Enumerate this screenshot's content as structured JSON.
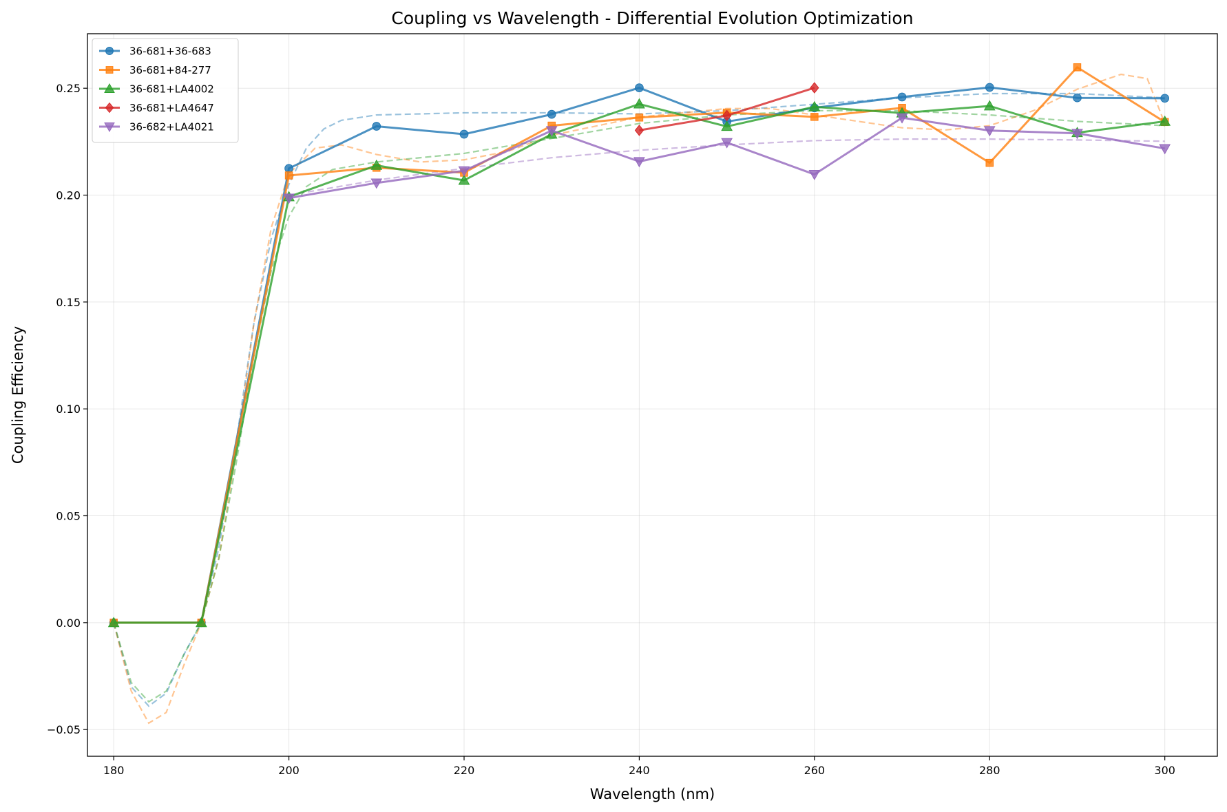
{
  "chart_data": {
    "type": "line",
    "title": "Coupling vs Wavelength - Differential Evolution Optimization",
    "xlabel": "Wavelength (nm)",
    "ylabel": "Coupling Efficiency",
    "xlim": [
      177,
      306
    ],
    "ylim": [
      -0.0625,
      0.2755
    ],
    "xticks": [
      180,
      200,
      220,
      240,
      260,
      280,
      300
    ],
    "xtick_labels": [
      "180",
      "200",
      "220",
      "240",
      "260",
      "280",
      "300"
    ],
    "yticks": [
      -0.05,
      0.0,
      0.05,
      0.1,
      0.15,
      0.2,
      0.25
    ],
    "ytick_labels": [
      "−0.05",
      "0.00",
      "0.05",
      "0.10",
      "0.15",
      "0.20",
      "0.25"
    ],
    "grid": true,
    "legend_position": "top-left",
    "series": [
      {
        "name": "36-681+36-683",
        "color": "#1f77b4",
        "marker": "circle",
        "points": [
          [
            180,
            0.0
          ],
          [
            190,
            0.0
          ],
          [
            200,
            0.2125
          ],
          [
            210,
            0.2322
          ],
          [
            220,
            0.2285
          ],
          [
            230,
            0.2378
          ],
          [
            240,
            0.2502
          ],
          [
            250,
            0.2344
          ],
          [
            260,
            0.2408
          ],
          [
            270,
            0.2459
          ],
          [
            280,
            0.2504
          ],
          [
            290,
            0.2455
          ],
          [
            300,
            0.2453
          ]
        ],
        "fit": [
          [
            180,
            0.0
          ],
          [
            182,
            -0.03
          ],
          [
            184,
            -0.039
          ],
          [
            186,
            -0.033
          ],
          [
            188,
            -0.015
          ],
          [
            190,
            0.0
          ],
          [
            192,
            0.035
          ],
          [
            194,
            0.085
          ],
          [
            196,
            0.14
          ],
          [
            198,
            0.18
          ],
          [
            200,
            0.205
          ],
          [
            202,
            0.222
          ],
          [
            204,
            0.231
          ],
          [
            206,
            0.235
          ],
          [
            210,
            0.2375
          ],
          [
            220,
            0.2385
          ],
          [
            230,
            0.2385
          ],
          [
            240,
            0.238
          ],
          [
            250,
            0.2395
          ],
          [
            260,
            0.2425
          ],
          [
            270,
            0.2455
          ],
          [
            280,
            0.2475
          ],
          [
            290,
            0.2475
          ],
          [
            300,
            0.2455
          ]
        ]
      },
      {
        "name": "36-681+84-277",
        "color": "#ff7f0e",
        "marker": "square",
        "points": [
          [
            180,
            0.0
          ],
          [
            190,
            0.0
          ],
          [
            200,
            0.2092
          ],
          [
            210,
            0.2128
          ],
          [
            220,
            0.2105
          ],
          [
            230,
            0.2325
          ],
          [
            240,
            0.2363
          ],
          [
            250,
            0.2386
          ],
          [
            260,
            0.2366
          ],
          [
            270,
            0.2408
          ],
          [
            280,
            0.2151
          ],
          [
            290,
            0.2598
          ],
          [
            300,
            0.2342
          ]
        ],
        "fit": [
          [
            180,
            0.0
          ],
          [
            182,
            -0.032
          ],
          [
            184,
            -0.047
          ],
          [
            186,
            -0.042
          ],
          [
            188,
            -0.02
          ],
          [
            190,
            0.0
          ],
          [
            192,
            0.03
          ],
          [
            194,
            0.08
          ],
          [
            196,
            0.14
          ],
          [
            198,
            0.185
          ],
          [
            200,
            0.21
          ],
          [
            203,
            0.222
          ],
          [
            206,
            0.2235
          ],
          [
            210,
            0.219
          ],
          [
            215,
            0.2155
          ],
          [
            220,
            0.2165
          ],
          [
            225,
            0.2205
          ],
          [
            230,
            0.228
          ],
          [
            240,
            0.2365
          ],
          [
            250,
            0.2405
          ],
          [
            255,
            0.2405
          ],
          [
            260,
            0.2375
          ],
          [
            270,
            0.2315
          ],
          [
            275,
            0.2305
          ],
          [
            280,
            0.2325
          ],
          [
            285,
            0.2395
          ],
          [
            290,
            0.2495
          ],
          [
            295,
            0.2565
          ],
          [
            298,
            0.2545
          ],
          [
            300,
            0.2335
          ]
        ]
      },
      {
        "name": "36-681+LA4002",
        "color": "#2ca02c",
        "marker": "triangle-up",
        "points": [
          [
            180,
            0.0
          ],
          [
            190,
            0.0
          ],
          [
            200,
            0.1992
          ],
          [
            210,
            0.2139
          ],
          [
            220,
            0.2069
          ],
          [
            230,
            0.2285
          ],
          [
            240,
            0.2426
          ],
          [
            250,
            0.2321
          ],
          [
            260,
            0.2413
          ],
          [
            270,
            0.2384
          ],
          [
            280,
            0.2417
          ],
          [
            290,
            0.2292
          ],
          [
            300,
            0.2345
          ]
        ],
        "fit": [
          [
            180,
            0.0
          ],
          [
            182,
            -0.028
          ],
          [
            184,
            -0.037
          ],
          [
            186,
            -0.032
          ],
          [
            188,
            -0.015
          ],
          [
            190,
            0.0
          ],
          [
            192,
            0.03
          ],
          [
            194,
            0.075
          ],
          [
            196,
            0.125
          ],
          [
            198,
            0.165
          ],
          [
            200,
            0.19
          ],
          [
            202,
            0.204
          ],
          [
            205,
            0.212
          ],
          [
            210,
            0.2155
          ],
          [
            220,
            0.2195
          ],
          [
            230,
            0.2265
          ],
          [
            240,
            0.2335
          ],
          [
            250,
            0.2375
          ],
          [
            260,
            0.2395
          ],
          [
            270,
            0.2395
          ],
          [
            280,
            0.2375
          ],
          [
            290,
            0.2345
          ],
          [
            300,
            0.2325
          ]
        ]
      },
      {
        "name": "36-681+LA4647",
        "color": "#d62728",
        "marker": "diamond",
        "points": [
          [
            240,
            0.2303
          ],
          [
            250,
            0.2372
          ],
          [
            260,
            0.2502
          ]
        ],
        "fit": []
      },
      {
        "name": "36-682+LA4021",
        "color": "#9467bd",
        "marker": "triangle-down",
        "points": [
          [
            200,
            0.1986
          ],
          [
            210,
            0.2057
          ],
          [
            220,
            0.2114
          ],
          [
            230,
            0.2302
          ],
          [
            240,
            0.2157
          ],
          [
            250,
            0.2246
          ],
          [
            260,
            0.2097
          ],
          [
            270,
            0.2362
          ],
          [
            280,
            0.2302
          ],
          [
            290,
            0.2289
          ],
          [
            300,
            0.2218
          ]
        ],
        "fit": [
          [
            200,
            0.2
          ],
          [
            210,
            0.207
          ],
          [
            220,
            0.2125
          ],
          [
            230,
            0.2175
          ],
          [
            240,
            0.221
          ],
          [
            250,
            0.2235
          ],
          [
            260,
            0.2255
          ],
          [
            270,
            0.2262
          ],
          [
            280,
            0.2262
          ],
          [
            290,
            0.2258
          ],
          [
            300,
            0.2252
          ]
        ]
      }
    ]
  }
}
